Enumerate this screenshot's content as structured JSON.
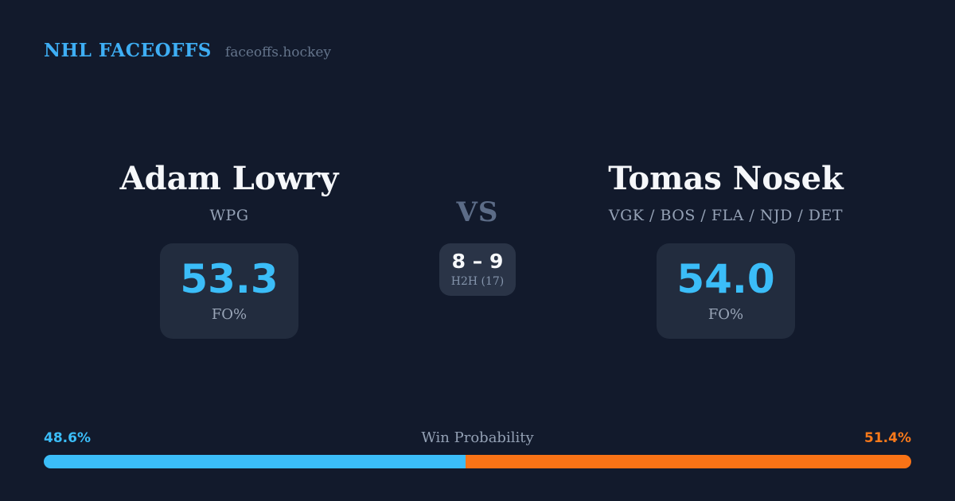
{
  "header": {
    "brand": "NHL FACEOFFS",
    "site": "faceoffs.hockey"
  },
  "left_player": {
    "name": "Adam Lowry",
    "teams": "WPG",
    "fo_pct": "53.3",
    "stat_label": "FO%"
  },
  "right_player": {
    "name": "Tomas Nosek",
    "teams": "VGK / BOS / FLA / NJD / DET",
    "fo_pct": "54.0",
    "stat_label": "FO%"
  },
  "matchup": {
    "vs_label": "VS",
    "h2h_record": "8 – 9",
    "h2h_label": "H2H (17)"
  },
  "win_probability": {
    "title": "Win Probability",
    "left_pct_label": "48.6%",
    "right_pct_label": "51.4%",
    "left_value": 48.6,
    "right_value": 51.4
  },
  "colors": {
    "background": "#121A2C",
    "accent_blue": "#3BBDF8",
    "accent_orange": "#F97316",
    "brand_blue": "#3EAEF4",
    "stat_box": "#222C3E",
    "h2h_box": "#2A3447",
    "muted_text": "#95A2B6"
  },
  "chart_data": {
    "type": "bar",
    "title": "Win Probability",
    "categories": [
      "Adam Lowry (WPG)",
      "Tomas Nosek (VGK / BOS / FLA / NJD / DET)"
    ],
    "series": [
      {
        "name": "Faceoff win % (FO%)",
        "values": [
          53.3,
          54.0
        ]
      },
      {
        "name": "Win probability %",
        "values": [
          48.6,
          51.4
        ]
      },
      {
        "name": "Head-to-head faceoff wins (of 17)",
        "values": [
          8,
          9
        ]
      }
    ],
    "xlabel": "",
    "ylabel": "",
    "ylim": [
      0,
      100
    ],
    "legend_position": "none",
    "grid": false,
    "orientation": "horizontal-stacked-probability-bar"
  }
}
